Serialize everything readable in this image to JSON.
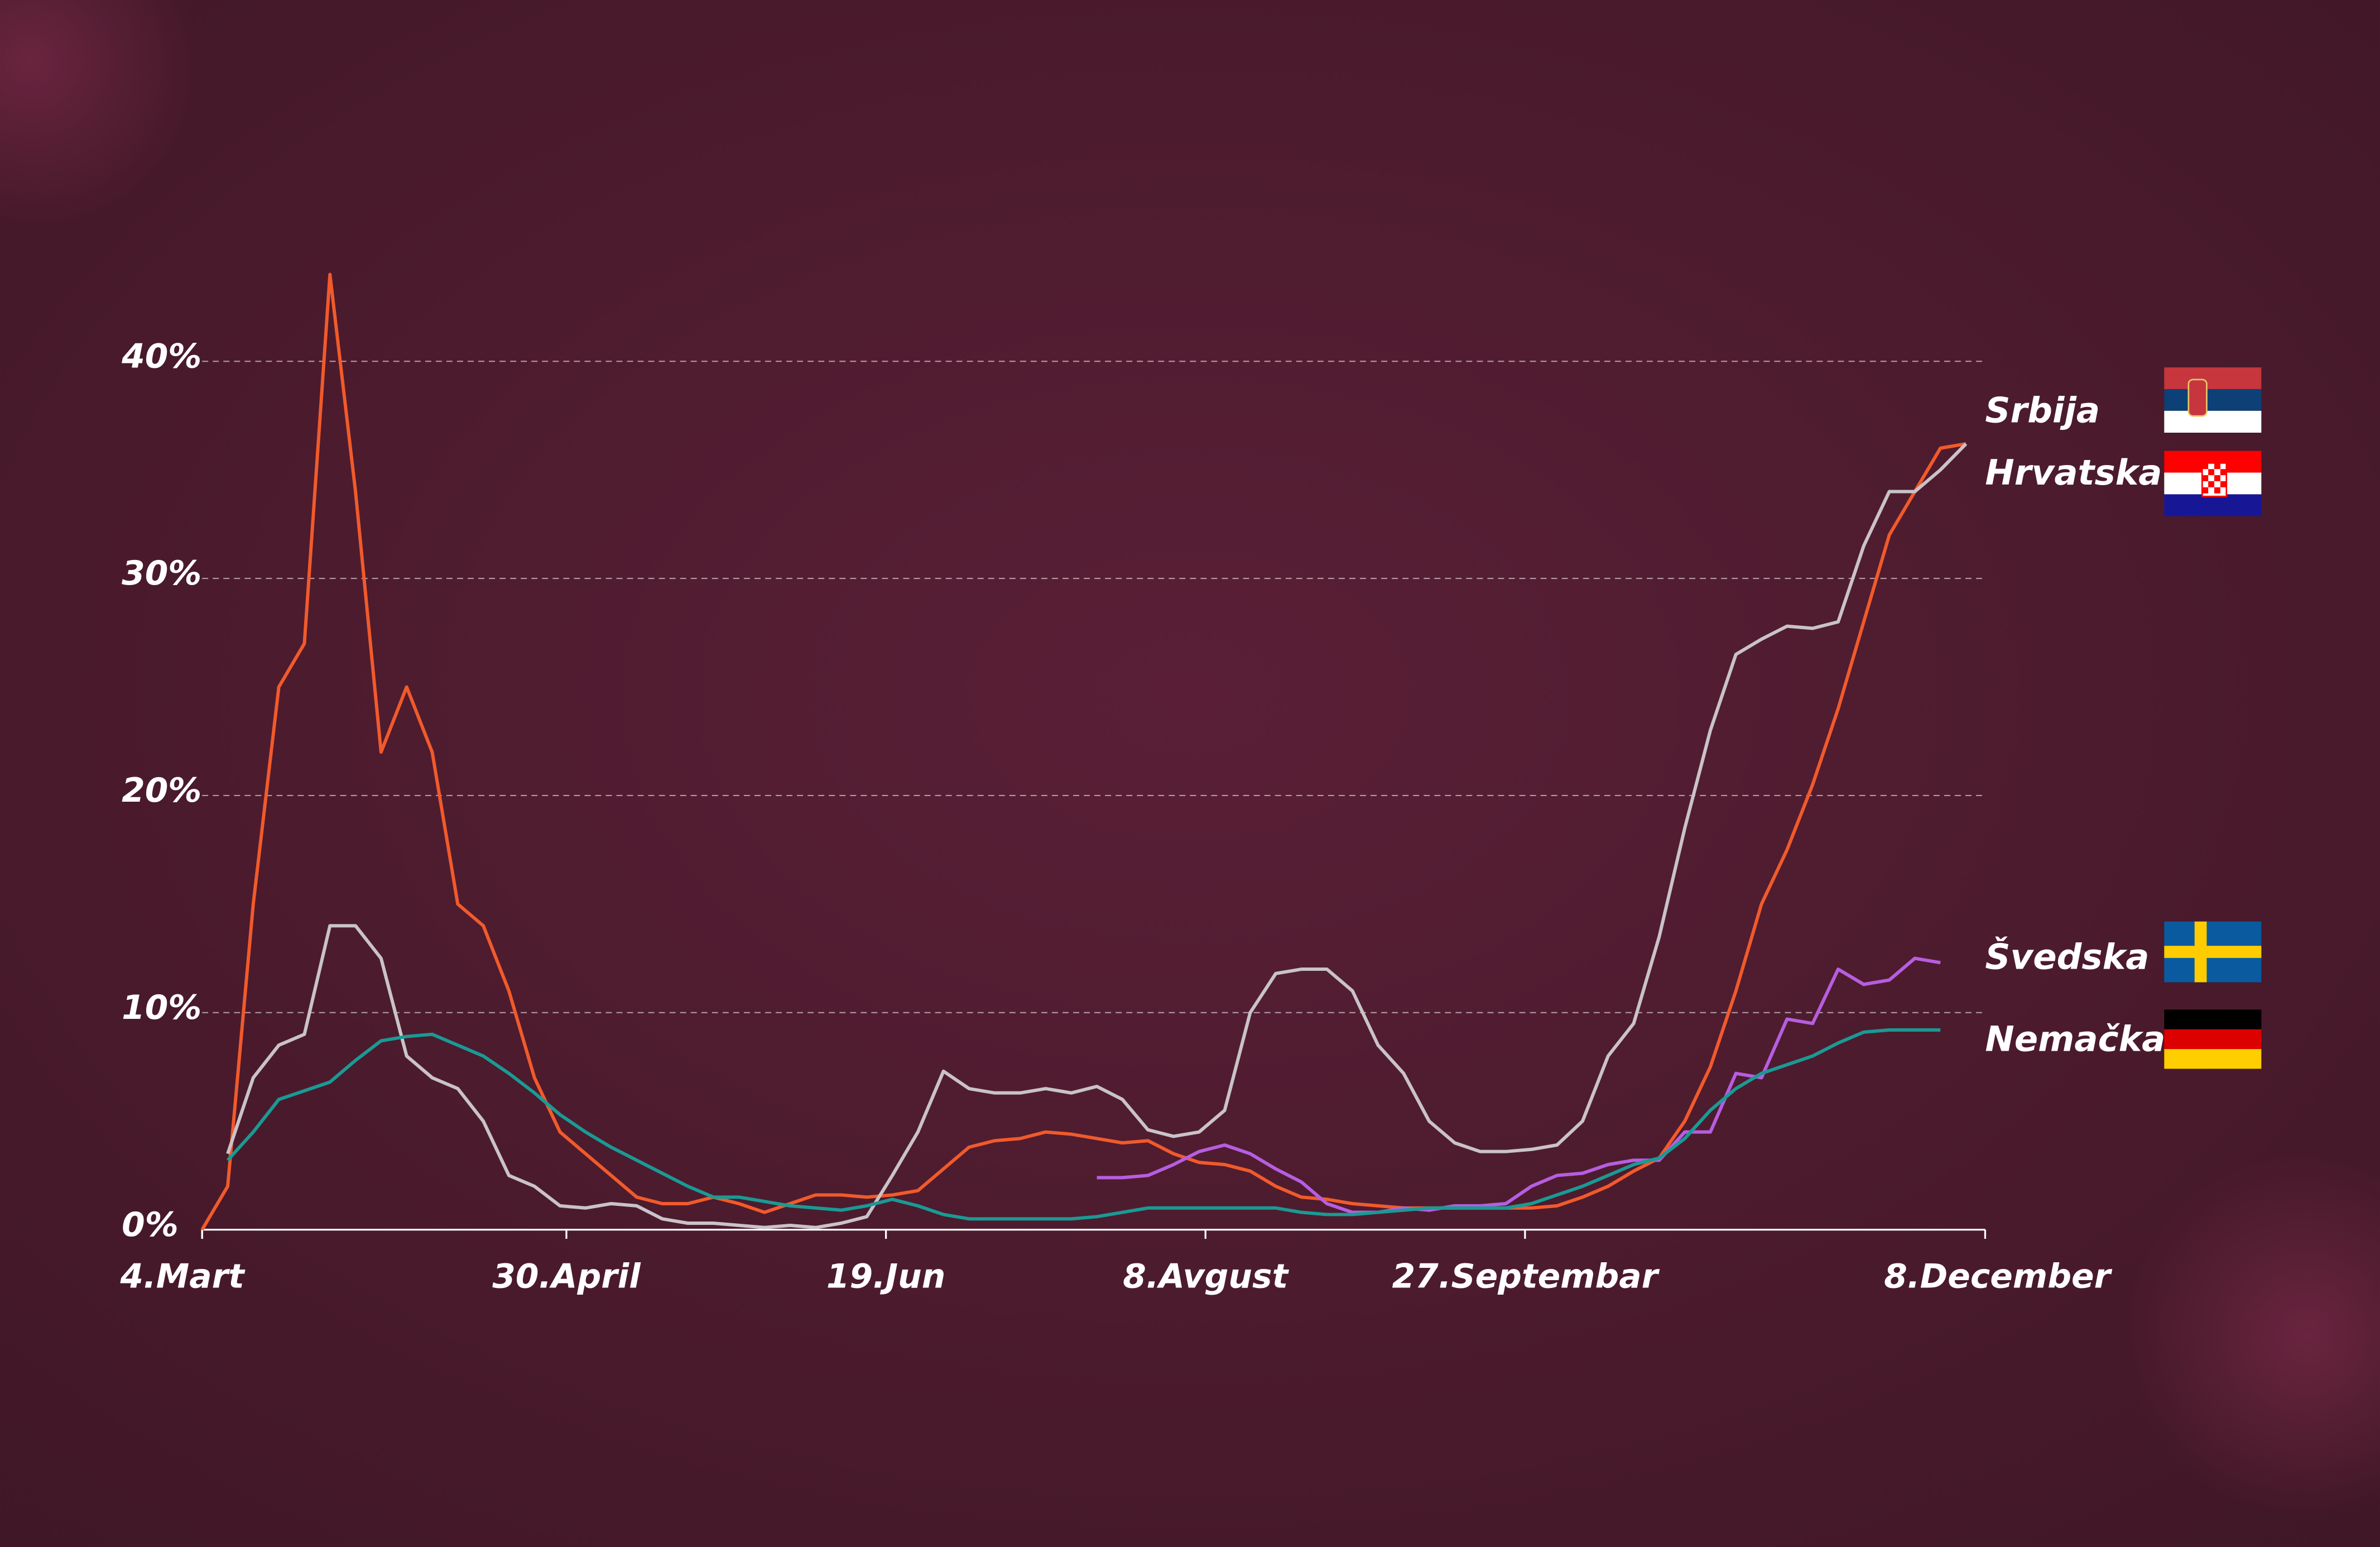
{
  "chart_data": {
    "type": "line",
    "x": [
      0,
      4,
      8,
      12,
      16,
      20,
      24,
      28,
      32,
      36,
      40,
      44,
      48,
      52,
      56,
      60,
      64,
      68,
      72,
      76,
      80,
      84,
      88,
      92,
      96,
      100,
      104,
      108,
      112,
      116,
      120,
      124,
      128,
      132,
      136,
      140,
      144,
      148,
      152,
      156,
      160,
      164,
      168,
      172,
      176,
      180,
      184,
      188,
      192,
      196,
      200,
      204,
      208,
      212,
      216,
      220,
      224,
      228,
      232,
      236,
      240,
      244,
      248,
      252,
      256,
      260,
      264,
      268,
      272,
      276
    ],
    "xlim": [
      0,
      279
    ],
    "xticks": [
      {
        "value": 0,
        "label": "4.Mart"
      },
      {
        "value": 57,
        "label": "30.April"
      },
      {
        "value": 107,
        "label": "19.Jun"
      },
      {
        "value": 157,
        "label": "8.Avgust"
      },
      {
        "value": 207,
        "label": "27.Septembar"
      },
      {
        "value": 279,
        "label": "8.December"
      }
    ],
    "ylim": [
      0,
      45
    ],
    "yticks": [
      {
        "value": 0,
        "label": "0%"
      },
      {
        "value": 10,
        "label": "10%"
      },
      {
        "value": 20,
        "label": "20%"
      },
      {
        "value": 30,
        "label": "30%"
      },
      {
        "value": 40,
        "label": "40%"
      }
    ],
    "grid": true,
    "series": [
      {
        "name": "Srbija",
        "color": "#f15a2b",
        "values": [
          0,
          2,
          15,
          25,
          27,
          44,
          34,
          22,
          25,
          22,
          15,
          14,
          11,
          7,
          4.5,
          3.5,
          2.5,
          1.5,
          1.2,
          1.2,
          1.5,
          1.2,
          0.8,
          1.2,
          1.6,
          1.6,
          1.5,
          1.6,
          1.8,
          2.8,
          3.8,
          4.1,
          4.2,
          4.5,
          4.4,
          4.2,
          4.0,
          4.1,
          3.5,
          3.1,
          3.0,
          2.7,
          2.0,
          1.5,
          1.4,
          1.2,
          1.1,
          1.0,
          1.0,
          1.0,
          1.0,
          1.0,
          1.0,
          1.1,
          1.5,
          2.0,
          2.7,
          3.3,
          5,
          7.5,
          11,
          15,
          17.5,
          20.5,
          24,
          28,
          32,
          34,
          36,
          36.2
        ]
      },
      {
        "name": "Hrvatska",
        "color": "#c9c3c7",
        "values": [
          null,
          3.5,
          7,
          8.5,
          9,
          14,
          14,
          12.5,
          8,
          7,
          6.5,
          5,
          2.5,
          2,
          1.1,
          1,
          1.2,
          1.1,
          0.5,
          0.3,
          0.3,
          0.2,
          0.1,
          0.2,
          0.1,
          0.3,
          0.6,
          2.5,
          4.5,
          7.3,
          6.5,
          6.3,
          6.3,
          6.5,
          6.3,
          6.6,
          6,
          4.6,
          4.3,
          4.5,
          5.5,
          10,
          11.8,
          12,
          12,
          11,
          8.5,
          7.2,
          5,
          4,
          3.6,
          3.6,
          3.7,
          3.9,
          5,
          8,
          9.5,
          13.5,
          18.5,
          23,
          26.5,
          27.2,
          27.8,
          27.7,
          28,
          31.5,
          34,
          34,
          35,
          36.2
        ]
      },
      {
        "name": "Švedska",
        "color": "#b65ee0",
        "values": [
          null,
          null,
          null,
          null,
          null,
          null,
          null,
          null,
          null,
          null,
          null,
          null,
          null,
          null,
          null,
          null,
          null,
          null,
          null,
          null,
          null,
          null,
          null,
          null,
          null,
          null,
          null,
          null,
          null,
          null,
          null,
          null,
          null,
          null,
          null,
          2.4,
          2.4,
          2.5,
          3,
          3.6,
          3.9,
          3.5,
          2.8,
          2.2,
          1.2,
          0.8,
          0.8,
          1.0,
          0.9,
          1.1,
          1.1,
          1.2,
          2.0,
          2.5,
          2.6,
          3.0,
          3.2,
          3.2,
          4.5,
          4.5,
          7.2,
          7.0,
          9.7,
          9.5,
          12,
          11.3,
          11.5,
          12.5,
          12.3,
          null
        ]
      },
      {
        "name": "Nemačka",
        "color": "#1a9a94",
        "values": [
          null,
          3.2,
          4.5,
          6,
          6.4,
          6.8,
          7.8,
          8.7,
          8.9,
          9.0,
          8.5,
          8,
          7.2,
          6.3,
          5.3,
          4.5,
          3.8,
          3.2,
          2.6,
          2.0,
          1.5,
          1.5,
          1.3,
          1.1,
          1.0,
          0.9,
          1.1,
          1.4,
          1.1,
          0.7,
          0.5,
          0.5,
          0.5,
          0.5,
          0.5,
          0.6,
          0.8,
          1.0,
          1.0,
          1.0,
          1.0,
          1.0,
          1.0,
          0.8,
          0.7,
          0.7,
          0.8,
          0.9,
          1.0,
          1.0,
          1.0,
          1.0,
          1.2,
          1.6,
          2.0,
          2.5,
          3.0,
          3.3,
          4.2,
          5.5,
          6.5,
          7.2,
          7.6,
          8.0,
          8.6,
          9.1,
          9.2,
          9.2,
          9.2,
          null
        ]
      }
    ]
  }
}
